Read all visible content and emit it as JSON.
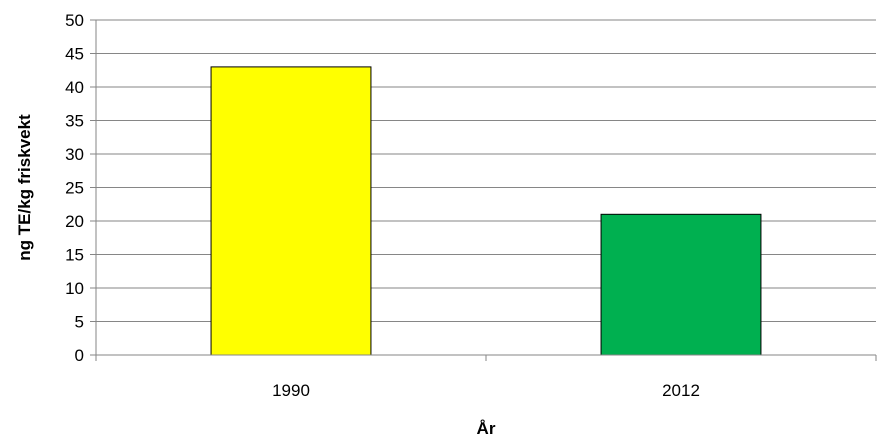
{
  "chart_data": {
    "type": "bar",
    "title": "",
    "xlabel": "År",
    "ylabel": "ng TE/kg friskvekt",
    "categories": [
      "1990",
      "2012"
    ],
    "values": [
      43,
      21
    ],
    "bar_colors": [
      "#ffff00",
      "#00b050"
    ],
    "ylim": [
      0,
      50
    ],
    "yticks": [
      0,
      5,
      10,
      15,
      20,
      25,
      30,
      35,
      40,
      45,
      50
    ],
    "grid": true,
    "legend": false
  }
}
